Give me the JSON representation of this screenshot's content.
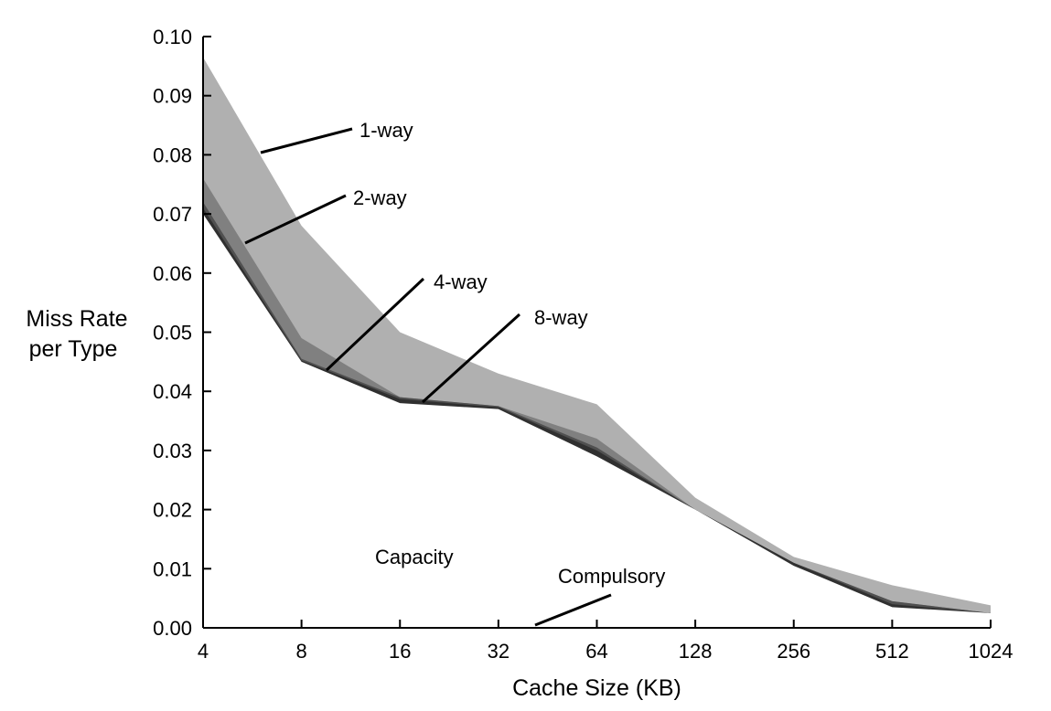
{
  "chart_data": {
    "type": "area",
    "title": "",
    "xlabel": "Cache Size (KB)",
    "ylabel_lines": [
      "Miss Rate",
      "per Type"
    ],
    "x_scale": "log2",
    "categories": [
      "4",
      "8",
      "16",
      "32",
      "64",
      "128",
      "256",
      "512",
      "1024"
    ],
    "ylim": [
      0,
      0.1
    ],
    "yticks": [
      "0.00",
      "0.01",
      "0.02",
      "0.03",
      "0.04",
      "0.05",
      "0.06",
      "0.07",
      "0.08",
      "0.09",
      "0.10"
    ],
    "grid": false,
    "stacking_note": "cumulative miss rate per associativity; bands between successive boundaries",
    "series": [
      {
        "name": "Compulsory",
        "color": "#aaaaaa",
        "values": [
          0.0001,
          0.0001,
          0.0001,
          0.0001,
          0.0001,
          0.0001,
          0.0001,
          0.0001,
          0.0001
        ]
      },
      {
        "name": "Capacity",
        "color": "#ffffff",
        "values": [
          0.07,
          0.045,
          0.038,
          0.037,
          0.029,
          0.02,
          0.0105,
          0.0035,
          0.0025
        ]
      },
      {
        "name": "8-way",
        "color": "#303030",
        "values": [
          0.071,
          0.0452,
          0.0387,
          0.0373,
          0.03,
          0.02,
          0.011,
          0.004,
          0.0025
        ]
      },
      {
        "name": "4-way",
        "color": "#505050",
        "values": [
          0.072,
          0.0455,
          0.039,
          0.0375,
          0.0305,
          0.02,
          0.011,
          0.0045,
          0.0025
        ]
      },
      {
        "name": "2-way",
        "color": "#808080",
        "values": [
          0.076,
          0.049,
          0.039,
          0.0375,
          0.032,
          0.02,
          0.011,
          0.0045,
          0.0025
        ]
      },
      {
        "name": "1-way",
        "color": "#b0b0b0",
        "values": [
          0.0965,
          0.068,
          0.05,
          0.043,
          0.0378,
          0.022,
          0.012,
          0.0072,
          0.0038
        ]
      }
    ],
    "annotations": [
      {
        "label": "1-way",
        "points_to": "1-way",
        "at_x": "4-8"
      },
      {
        "label": "2-way",
        "points_to": "2-way",
        "at_x": "4-8"
      },
      {
        "label": "4-way",
        "points_to": "4-way",
        "at_x": "8-16"
      },
      {
        "label": "8-way",
        "points_to": "8-way",
        "at_x": "16-32"
      },
      {
        "label": "Compulsory",
        "points_to": "Compulsory",
        "at_x": "32-64"
      },
      {
        "label": "Capacity",
        "points_to": "Capacity",
        "at_x": "16-32"
      }
    ]
  }
}
